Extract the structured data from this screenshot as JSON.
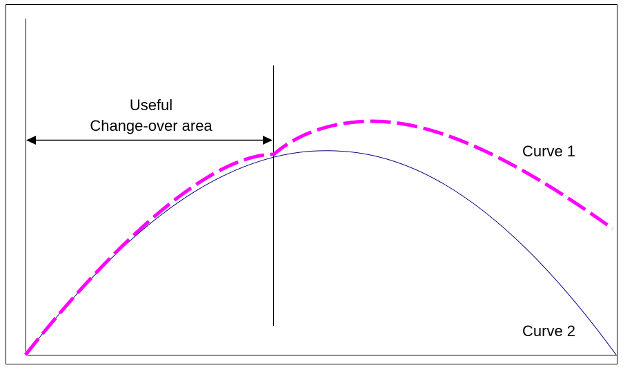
{
  "annotation": {
    "line1": "Useful",
    "line2": "Change-over area"
  },
  "labels": {
    "curve1": "Curve 1",
    "curve2": "Curve 2"
  },
  "colors": {
    "curve1": "#ff00ff",
    "curve2": "#000080",
    "axes": "#000000",
    "border": "#000000"
  }
}
